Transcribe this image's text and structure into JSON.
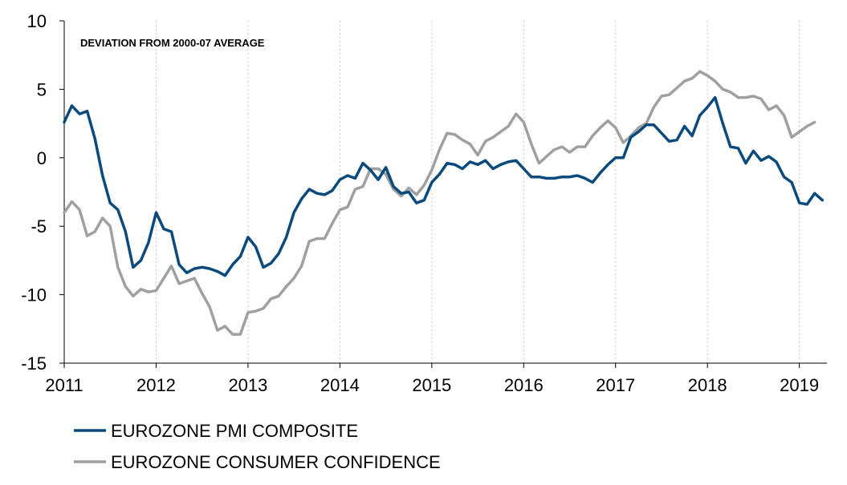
{
  "chart_data": {
    "type": "line",
    "annotation": "DEVIATION FROM 2000-07 AVERAGE",
    "x_range": [
      2011,
      2019.3
    ],
    "ylim": [
      -15,
      10
    ],
    "y_ticks": [
      10,
      5,
      0,
      -5,
      -10,
      -15
    ],
    "y_tick_labels": [
      "10",
      "5",
      "0",
      "-5",
      "-10",
      "-15"
    ],
    "x_ticks": [
      2011,
      2012,
      2013,
      2014,
      2015,
      2016,
      2017,
      2018,
      2019
    ],
    "x_tick_labels": [
      "2011",
      "2012",
      "2013",
      "2014",
      "2015",
      "2016",
      "2017",
      "2018",
      "2019"
    ],
    "grid": "vertical dotted",
    "legend_position": "bottom-left",
    "series": [
      {
        "name": "EUROZONE PMI COMPOSITE",
        "color": "#0b4a7c",
        "values": [
          2.6,
          3.8,
          3.2,
          3.4,
          1.4,
          -1.3,
          -3.3,
          -3.8,
          -5.4,
          -8.0,
          -7.5,
          -6.2,
          -4.0,
          -5.2,
          -5.4,
          -7.8,
          -8.4,
          -8.1,
          -8.0,
          -8.1,
          -8.3,
          -8.6,
          -7.8,
          -7.2,
          -5.8,
          -6.5,
          -8.0,
          -7.7,
          -7.0,
          -5.8,
          -4.0,
          -3.0,
          -2.3,
          -2.6,
          -2.7,
          -2.4,
          -1.6,
          -1.3,
          -1.5,
          -0.4,
          -0.9,
          -1.6,
          -0.7,
          -2.1,
          -2.6,
          -2.5,
          -3.3,
          -3.1,
          -1.8,
          -1.2,
          -0.4,
          -0.5,
          -0.8,
          -0.3,
          -0.5,
          -0.2,
          -0.8,
          -0.5,
          -0.3,
          -0.2,
          -0.8,
          -1.4,
          -1.4,
          -1.5,
          -1.5,
          -1.4,
          -1.4,
          -1.3,
          -1.5,
          -1.8,
          -1.1,
          -0.5,
          0.0,
          0.0,
          1.5,
          1.9,
          2.4,
          2.4,
          1.8,
          1.2,
          1.3,
          2.3,
          1.6,
          3.1,
          3.7,
          4.4,
          2.5,
          0.8,
          0.7,
          -0.4,
          0.5,
          -0.2,
          0.1,
          -0.3,
          -1.4,
          -1.8,
          -3.3,
          -3.4,
          -2.6,
          -3.1
        ]
      },
      {
        "name": "EUROZONE CONSUMER CONFIDENCE",
        "color": "#a0a0a0",
        "values": [
          -4.0,
          -3.2,
          -3.8,
          -5.7,
          -5.4,
          -4.4,
          -5.0,
          -8.0,
          -9.4,
          -10.1,
          -9.6,
          -9.8,
          -9.7,
          -8.8,
          -7.9,
          -9.2,
          -9.0,
          -8.8,
          -9.9,
          -10.9,
          -12.6,
          -12.3,
          -12.9,
          -12.9,
          -11.3,
          -11.2,
          -11.0,
          -10.3,
          -10.1,
          -9.4,
          -8.8,
          -7.9,
          -6.1,
          -5.9,
          -5.9,
          -4.8,
          -3.8,
          -3.6,
          -2.3,
          -2.1,
          -0.8,
          -0.8,
          -1.2,
          -2.3,
          -2.8,
          -2.2,
          -2.7,
          -2.0,
          -0.9,
          0.6,
          1.8,
          1.7,
          1.3,
          1.0,
          0.2,
          1.2,
          1.5,
          1.9,
          2.3,
          3.2,
          2.6,
          1.0,
          -0.4,
          0.1,
          0.6,
          0.8,
          0.4,
          0.8,
          0.8,
          1.6,
          2.2,
          2.7,
          2.2,
          1.1,
          1.6,
          2.2,
          2.5,
          3.7,
          4.5,
          4.6,
          5.1,
          5.6,
          5.8,
          6.3,
          6.0,
          5.6,
          5.0,
          4.8,
          4.4,
          4.4,
          4.5,
          4.3,
          3.5,
          3.8,
          3.1,
          1.5,
          1.9,
          2.3,
          2.6
        ]
      }
    ]
  }
}
